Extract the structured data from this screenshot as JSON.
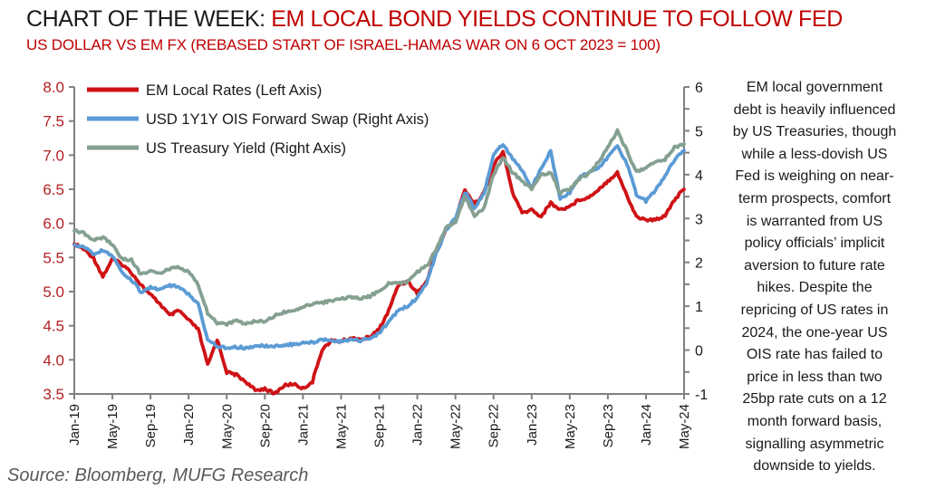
{
  "header": {
    "title_prefix": "CHART OF THE WEEK: ",
    "title_accent": "EM LOCAL BOND YIELDS CONTINUE TO FOLLOW FED",
    "subtitle": "US DOLLAR VS EM FX (REBASED START OF ISRAEL-HAMAS WAR ON 6 OCT 2023 = 100)"
  },
  "commentary": {
    "lines": [
      "EM local government",
      "debt is heavily influenced",
      "by US Treasuries, though",
      "while a less-dovish US",
      "Fed is weighing on near-",
      "term prospects, comfort",
      "is warranted from US",
      "policy officials’ implicit",
      "aversion to future rate",
      "hikes. Despite the",
      "repricing of US rates in",
      "2024, the one-year US",
      "OIS rate has failed to",
      "price in less than two",
      "25bp rate cuts on a 12",
      "month forward basis,",
      "signalling asymmetric",
      "downside to yields."
    ]
  },
  "source": {
    "text": "Source: Bloomberg, MUFG Research"
  },
  "colors": {
    "title_accent": "#c00000",
    "axis_label_left": "#b42025",
    "spine": "#808080",
    "text": "#1a1a1a",
    "source_text": "#595959",
    "series_red": "#cf1216",
    "series_blue": "#5b9bd5",
    "series_green": "#84a091"
  },
  "chart_data": {
    "type": "line",
    "title": "",
    "xlabel": "",
    "ylabel_left": "",
    "ylabel_right": "",
    "grid": false,
    "legend_position": "top-left",
    "x_start": "Jan-19",
    "x_end": "May-24",
    "x_frequency": "monthly",
    "x_tick_labels": [
      "Jan-19",
      "May-19",
      "Sep-19",
      "Jan-20",
      "May-20",
      "Sep-20",
      "Jan-21",
      "May-21",
      "Sep-21",
      "Jan-22",
      "May-22",
      "Sep-22",
      "Jan-23",
      "May-23",
      "Sep-23",
      "Jan-24",
      "May-24"
    ],
    "left_axis": {
      "min": 3.5,
      "max": 8.0,
      "tick_step": 0.5
    },
    "right_axis": {
      "min": -1,
      "max": 6,
      "label_step": 1,
      "tick_step": 0.5
    },
    "series": [
      {
        "name": "EM Local Rates",
        "label": "EM Local Rates (Left Axis)",
        "axis": "left",
        "color": "#cf1216",
        "values": [
          5.7,
          5.62,
          5.5,
          5.22,
          5.48,
          5.4,
          5.28,
          5.1,
          4.95,
          4.82,
          4.65,
          4.72,
          4.58,
          4.45,
          3.92,
          4.3,
          3.82,
          3.78,
          3.68,
          3.55,
          3.58,
          3.5,
          3.62,
          3.65,
          3.58,
          3.68,
          4.15,
          4.28,
          4.27,
          4.32,
          4.3,
          4.33,
          4.45,
          4.72,
          5.1,
          5.15,
          4.98,
          5.15,
          5.6,
          5.9,
          6.05,
          6.5,
          6.28,
          6.45,
          6.85,
          7.05,
          6.45,
          6.15,
          6.2,
          6.1,
          6.3,
          6.2,
          6.25,
          6.35,
          6.38,
          6.5,
          6.62,
          6.75,
          6.4,
          6.1,
          6.05,
          6.05,
          6.12,
          6.35,
          6.5
        ]
      },
      {
        "name": "USD 1Y1Y OIS Forward Swap",
        "label": "USD 1Y1Y OIS Forward Swap (Right Axis)",
        "axis": "right",
        "color": "#5b9bd5",
        "values": [
          2.4,
          2.35,
          2.2,
          2.28,
          2.15,
          1.78,
          1.6,
          1.32,
          1.42,
          1.38,
          1.48,
          1.45,
          1.28,
          1.05,
          0.25,
          0.1,
          0.05,
          0.07,
          0.05,
          0.07,
          0.1,
          0.1,
          0.12,
          0.13,
          0.15,
          0.17,
          0.24,
          0.22,
          0.2,
          0.25,
          0.22,
          0.28,
          0.38,
          0.65,
          0.9,
          1.0,
          1.2,
          1.55,
          2.2,
          2.75,
          3.0,
          3.6,
          3.25,
          3.55,
          4.45,
          4.7,
          4.35,
          4.1,
          3.7,
          4.15,
          4.55,
          3.45,
          3.6,
          3.95,
          4.05,
          4.15,
          4.4,
          4.65,
          4.25,
          3.55,
          3.4,
          3.65,
          3.95,
          4.35,
          4.55
        ]
      },
      {
        "name": "US Treasury Yield",
        "label": "US Treasury Yield (Right Axis)",
        "axis": "right",
        "color": "#84a091",
        "values": [
          2.72,
          2.66,
          2.52,
          2.56,
          2.42,
          2.08,
          2.06,
          1.72,
          1.8,
          1.76,
          1.86,
          1.88,
          1.78,
          1.5,
          0.85,
          0.62,
          0.6,
          0.66,
          0.6,
          0.65,
          0.64,
          0.78,
          0.86,
          0.92,
          0.98,
          1.05,
          1.08,
          1.12,
          1.16,
          1.22,
          1.18,
          1.22,
          1.35,
          1.52,
          1.52,
          1.55,
          1.78,
          1.92,
          2.3,
          2.8,
          2.92,
          3.5,
          3.05,
          3.25,
          4.0,
          4.4,
          4.05,
          3.85,
          3.68,
          4.0,
          4.05,
          3.58,
          3.68,
          3.9,
          4.02,
          4.28,
          4.62,
          5.0,
          4.55,
          4.05,
          4.15,
          4.3,
          4.35,
          4.62,
          4.7
        ]
      }
    ]
  }
}
